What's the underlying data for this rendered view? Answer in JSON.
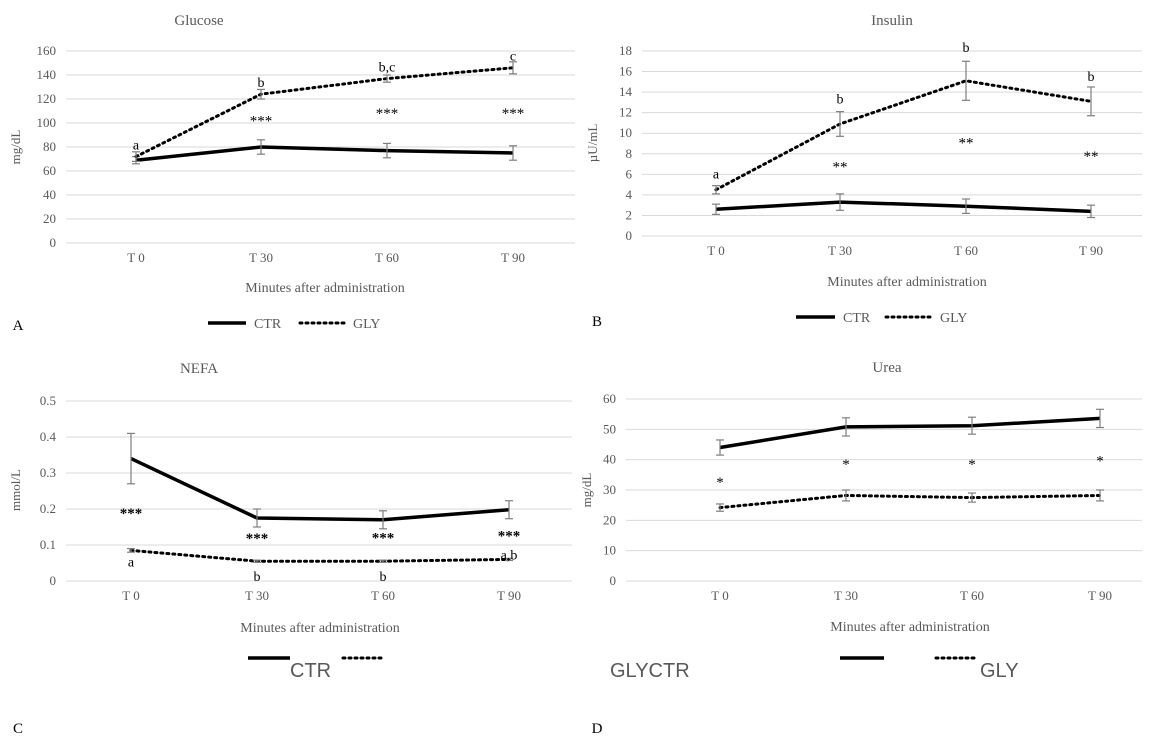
{
  "figure": {
    "legend_sans": {
      "ctr": "CTR",
      "gly_ctr": "GLYCTR",
      "gly": "GLY"
    }
  },
  "chart_data": [
    {
      "panel_label": "A",
      "type": "line",
      "title": "Glucose",
      "xlabel": "Minutes after administration",
      "ylabel": "mg/dL",
      "categories": [
        "T 0",
        "T 30",
        "T 60",
        "T 90"
      ],
      "ylim": [
        0,
        160
      ],
      "yticks": [
        0,
        20,
        40,
        60,
        80,
        100,
        120,
        140,
        160
      ],
      "ytick_labels": [
        "0",
        "20",
        "40",
        "60",
        "80",
        "100",
        "120",
        "140",
        "160"
      ],
      "grid": true,
      "legend": "bottom",
      "series": [
        {
          "name": "CTR",
          "style": "solid",
          "values": [
            69,
            80,
            77,
            75
          ],
          "errors": [
            3,
            6,
            6,
            6
          ]
        },
        {
          "name": "GLY",
          "style": "dotted",
          "values": [
            72,
            124,
            137,
            146
          ],
          "errors": [
            4,
            4,
            3,
            5
          ]
        }
      ],
      "annotations": [
        {
          "x": "T 0",
          "y": 78,
          "text": "a"
        },
        {
          "x": "T 30",
          "y": 130,
          "text": "b"
        },
        {
          "x": "T 60",
          "y": 143,
          "text": "b,c"
        },
        {
          "x": "T 90",
          "y": 152,
          "text": "c"
        },
        {
          "x": "T 30",
          "y": 98,
          "text": "***"
        },
        {
          "x": "T 60",
          "y": 104,
          "text": "***"
        },
        {
          "x": "T 90",
          "y": 104,
          "text": "***"
        }
      ]
    },
    {
      "panel_label": "B",
      "type": "line",
      "title": "Insulin",
      "xlabel": "Minutes after administration",
      "ylabel": "µU/mL",
      "categories": [
        "T 0",
        "T 30",
        "T 60",
        "T 90"
      ],
      "ylim": [
        0,
        18
      ],
      "yticks": [
        0,
        2,
        4,
        6,
        8,
        10,
        12,
        14,
        16,
        18
      ],
      "ytick_labels": [
        "0",
        "2",
        "4",
        "6",
        "8",
        "10",
        "12",
        "14",
        "16",
        "18"
      ],
      "grid": true,
      "legend": "bottom",
      "series": [
        {
          "name": "CTR",
          "style": "solid",
          "values": [
            2.6,
            3.3,
            2.9,
            2.4
          ],
          "errors": [
            0.5,
            0.8,
            0.7,
            0.6
          ]
        },
        {
          "name": "GLY",
          "style": "dotted",
          "values": [
            4.5,
            10.9,
            15.1,
            13.1
          ],
          "errors": [
            0.4,
            1.2,
            1.9,
            1.4
          ]
        }
      ],
      "annotations": [
        {
          "x": "T 0",
          "y": 5.6,
          "text": "a"
        },
        {
          "x": "T 30",
          "y": 12.9,
          "text": "b"
        },
        {
          "x": "T 60",
          "y": 17.9,
          "text": "b"
        },
        {
          "x": "T 90",
          "y": 15.1,
          "text": "b"
        },
        {
          "x": "T 30",
          "y": 6.3,
          "text": "**"
        },
        {
          "x": "T 60",
          "y": 8.6,
          "text": "**"
        },
        {
          "x": "T 90",
          "y": 7.3,
          "text": "**"
        }
      ]
    },
    {
      "panel_label": "C",
      "type": "line",
      "title": "NEFA",
      "xlabel": "Minutes after administration",
      "ylabel": "mmol/L",
      "categories": [
        "T 0",
        "T 30",
        "T 60",
        "T 90"
      ],
      "ylim": [
        0,
        0.5
      ],
      "yticks": [
        0,
        0.1,
        0.2,
        0.3,
        0.4,
        0.5
      ],
      "ytick_labels": [
        "0",
        "0.1",
        "0.2",
        "0.3",
        "0.4",
        "0.5"
      ],
      "grid": true,
      "legend": "bottom",
      "series": [
        {
          "name": "CTR",
          "style": "solid",
          "values": [
            0.34,
            0.175,
            0.17,
            0.198
          ],
          "errors": [
            0.07,
            0.025,
            0.025,
            0.025
          ]
        },
        {
          "name": "GLY",
          "style": "dotted",
          "values": [
            0.085,
            0.055,
            0.055,
            0.06
          ],
          "errors": [
            0.005,
            0.003,
            0.003,
            0.003
          ]
        }
      ],
      "annotations": [
        {
          "x": "T 0",
          "y": 0.175,
          "text": "***"
        },
        {
          "x": "T 30",
          "y": 0.105,
          "text": "***"
        },
        {
          "x": "T 60",
          "y": 0.107,
          "text": "***"
        },
        {
          "x": "T 90",
          "y": 0.112,
          "text": "***"
        },
        {
          "x": "T 0",
          "y": 0.04,
          "text": "a"
        },
        {
          "x": "T 30",
          "y": 0.0,
          "text": "b"
        },
        {
          "x": "T 60",
          "y": 0.0,
          "text": "b"
        },
        {
          "x": "T 90",
          "y": 0.06,
          "text": "a,b"
        }
      ]
    },
    {
      "panel_label": "D",
      "type": "line",
      "title": "Urea",
      "xlabel": "Minutes after administration",
      "ylabel": "mg/dL",
      "categories": [
        "T 0",
        "T 30",
        "T 60",
        "T 90"
      ],
      "ylim": [
        0,
        60
      ],
      "yticks": [
        0,
        10,
        20,
        30,
        40,
        50,
        60
      ],
      "ytick_labels": [
        "0",
        "10",
        "20",
        "30",
        "40",
        "50",
        "60"
      ],
      "grid": true,
      "legend": "bottom",
      "series": [
        {
          "name": "CTR",
          "style": "solid",
          "values": [
            44,
            50.8,
            51.2,
            53.6
          ],
          "errors": [
            2.5,
            3,
            2.8,
            3
          ]
        },
        {
          "name": "GLY",
          "style": "dotted",
          "values": [
            24.2,
            28.2,
            27.5,
            28.2
          ],
          "errors": [
            1.2,
            1.8,
            1.5,
            1.8
          ]
        }
      ],
      "annotations": [
        {
          "x": "T 0",
          "y": 31,
          "text": "*"
        },
        {
          "x": "T 30",
          "y": 37,
          "text": "*"
        },
        {
          "x": "T 60",
          "y": 37,
          "text": "*"
        },
        {
          "x": "T 90",
          "y": 38,
          "text": "*"
        }
      ]
    }
  ]
}
